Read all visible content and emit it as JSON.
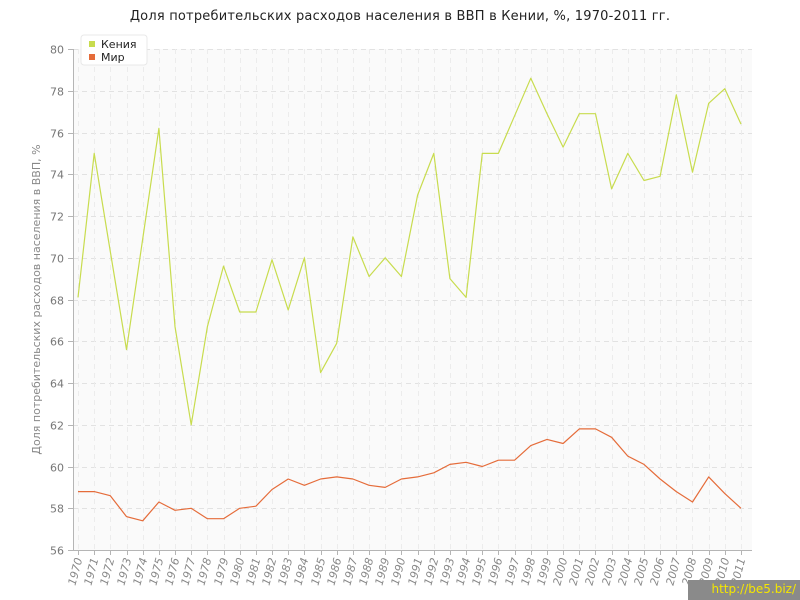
{
  "title": "Доля потребительских расходов населения в ВВП в Кении, %, 1970-2011 гг.",
  "watermark": "http://be5.biz/",
  "chart_data": {
    "type": "line",
    "title": "Доля потребительских расходов населения в ВВП в Кении, %, 1970-2011 гг.",
    "xlabel": "",
    "ylabel": "Доля потребительских расходов населения в ВВП, %",
    "ylim": [
      56,
      80
    ],
    "yticks": [
      56,
      58,
      60,
      62,
      64,
      66,
      68,
      70,
      72,
      74,
      76,
      78,
      80
    ],
    "grid": true,
    "legend_position": "top-left",
    "categories": [
      "1970",
      "1971",
      "1972",
      "1973",
      "1974",
      "1975",
      "1976",
      "1977",
      "1978",
      "1979",
      "1980",
      "1981",
      "1982",
      "1983",
      "1984",
      "1985",
      "1986",
      "1987",
      "1988",
      "1989",
      "1990",
      "1991",
      "1992",
      "1993",
      "1994",
      "1995",
      "1996",
      "1997",
      "1998",
      "1999",
      "2000",
      "2001",
      "2002",
      "2003",
      "2004",
      "2005",
      "2006",
      "2007",
      "2008",
      "2009",
      "2010",
      "2011"
    ],
    "series": [
      {
        "name": "Кения",
        "color": "#c8dc4e",
        "values": [
          68.1,
          75.0,
          70.3,
          65.6,
          70.9,
          76.2,
          66.7,
          62.0,
          66.7,
          69.6,
          67.4,
          67.4,
          69.9,
          67.5,
          70.0,
          64.5,
          65.9,
          71.0,
          69.1,
          70.0,
          69.1,
          73.0,
          75.0,
          69.0,
          68.1,
          75.0,
          75.0,
          76.8,
          78.6,
          76.9,
          75.3,
          76.9,
          76.9,
          73.3,
          75.0,
          73.7,
          73.9,
          77.8,
          74.1,
          77.4,
          78.1,
          76.4
        ]
      },
      {
        "name": "Мир",
        "color": "#e56c3a",
        "values": [
          58.8,
          58.8,
          58.6,
          57.6,
          57.4,
          58.3,
          57.9,
          58.0,
          57.5,
          57.5,
          58.0,
          58.1,
          58.9,
          59.4,
          59.1,
          59.4,
          59.5,
          59.4,
          59.1,
          59.0,
          59.4,
          59.5,
          59.7,
          60.1,
          60.2,
          60.0,
          60.3,
          60.3,
          61.0,
          61.3,
          61.1,
          61.8,
          61.8,
          61.4,
          60.5,
          60.1,
          59.4,
          58.8,
          58.3,
          59.5,
          58.7,
          58.0
        ]
      }
    ]
  }
}
